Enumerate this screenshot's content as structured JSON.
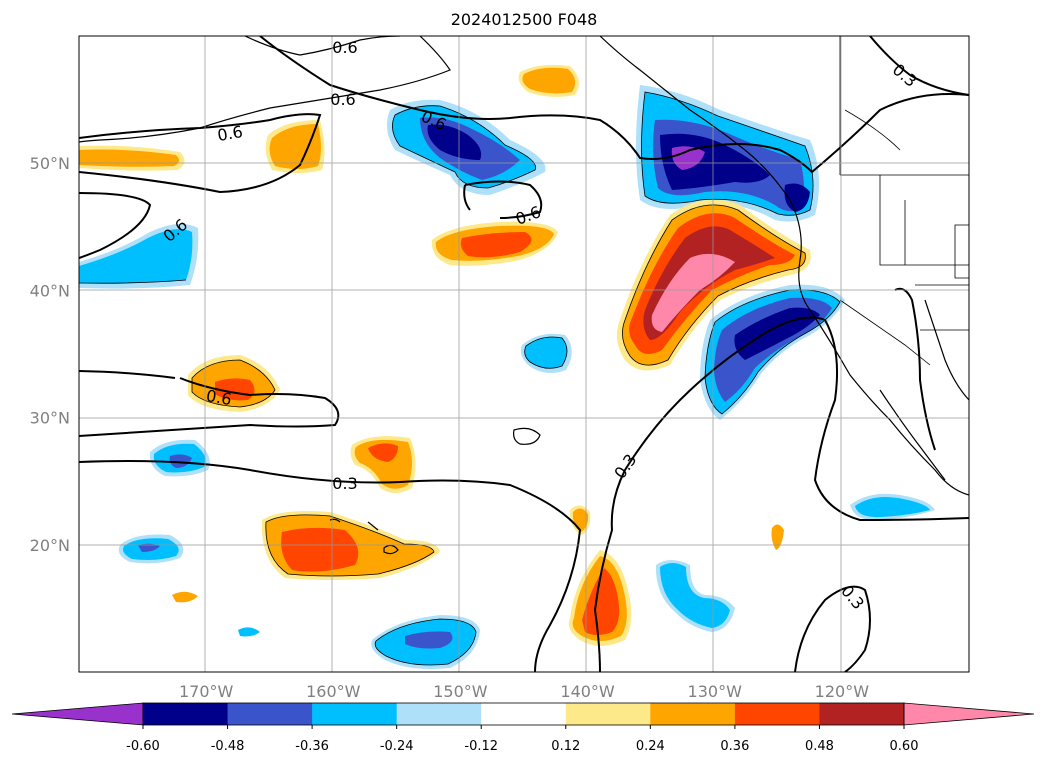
{
  "title": "2024012500 F048",
  "map": {
    "lon_range": [
      -180,
      -110
    ],
    "lat_range": [
      10,
      60
    ],
    "lon_ticks": [
      {
        "value": -170,
        "label": "170°W"
      },
      {
        "value": -160,
        "label": "160°W"
      },
      {
        "value": -150,
        "label": "150°W"
      },
      {
        "value": -140,
        "label": "140°W"
      },
      {
        "value": -130,
        "label": "130°W"
      },
      {
        "value": -120,
        "label": "120°W"
      }
    ],
    "lat_ticks": [
      {
        "value": 20,
        "label": "20°N"
      },
      {
        "value": 30,
        "label": "30°N"
      },
      {
        "value": 40,
        "label": "40°N"
      },
      {
        "value": 50,
        "label": "50°N"
      }
    ],
    "gridlines": true,
    "contour_labels": [
      "0.6",
      "0.6",
      "0.6",
      "0.6",
      "0.6",
      "0.6",
      "0.6",
      "0.3",
      "0.3",
      "0.3",
      "0.3"
    ]
  },
  "colorbar": {
    "orientation": "horizontal",
    "extend": "both",
    "levels": [
      "-0.60",
      "-0.48",
      "-0.36",
      "-0.24",
      "-0.12",
      "0.12",
      "0.24",
      "0.36",
      "0.48",
      "0.60"
    ],
    "colors": [
      "#9932cc",
      "#00008b",
      "#3a55cc",
      "#00bfff",
      "#aee0fa",
      "#ffffff",
      "#fde88a",
      "#ffa500",
      "#ff4500",
      "#b22222",
      "#ff88aa"
    ]
  }
}
